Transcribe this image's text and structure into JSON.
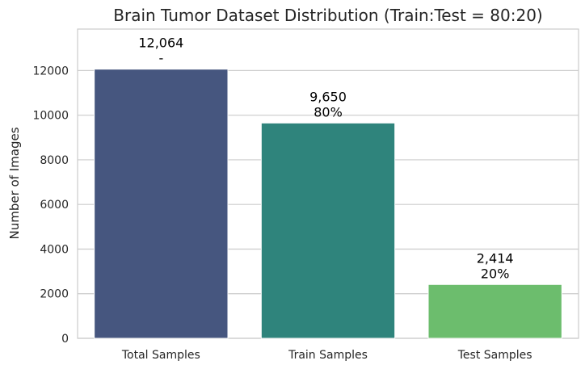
{
  "chart_data": {
    "type": "bar",
    "title": "Brain Tumor Dataset Distribution (Train:Test = 80:20)",
    "xlabel": "",
    "ylabel": "Number of Images",
    "categories": [
      "Total Samples",
      "Train Samples",
      "Test Samples"
    ],
    "values": [
      12064,
      9650,
      2414
    ],
    "value_labels": [
      "12,064",
      "9,650",
      "2,414"
    ],
    "percent_labels": [
      "-",
      "80%",
      "20%"
    ],
    "colors": [
      "#46567f",
      "#2f847c",
      "#6cbd6d"
    ],
    "ylim": [
      0,
      13860
    ],
    "yticks": [
      0,
      2000,
      4000,
      6000,
      8000,
      10000,
      12000
    ],
    "ytick_labels": [
      "0",
      "2000",
      "4000",
      "6000",
      "8000",
      "10000",
      "12000"
    ],
    "grid": "horizontal",
    "legend": "none"
  }
}
